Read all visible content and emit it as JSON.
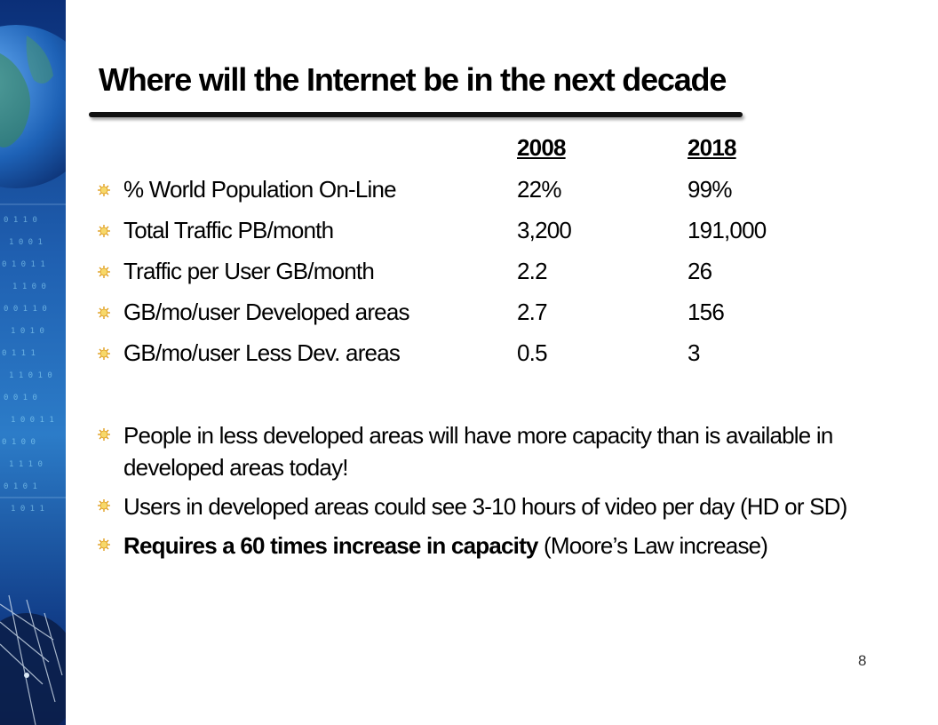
{
  "slide": {
    "title": "Where will the Internet be in the next decade",
    "page_number": "8"
  },
  "table": {
    "headers": [
      "2008",
      "2018"
    ],
    "rows": [
      {
        "label": "% World Population On-Line",
        "v2008": "22%",
        "v2018": "99%"
      },
      {
        "label": "Total Traffic PB/month",
        "v2008": "3,200",
        "v2018": "191,000"
      },
      {
        "label": "Traffic per User GB/month",
        "v2008": "2.2",
        "v2018": "26"
      },
      {
        "label": "GB/mo/user Developed areas",
        "v2008": "2.7",
        "v2018": "156"
      },
      {
        "label": "GB/mo/user Less Dev. areas",
        "v2008": "0.5",
        "v2018": "3"
      }
    ]
  },
  "notes": [
    {
      "text": "People in  less developed areas will have more capacity than is available in developed areas today!"
    },
    {
      "text": "Users in developed areas could see 3-10 hours of video per day (HD or SD)"
    },
    {
      "strong": "Requires a 60 times increase in capacity",
      "text": " (Moore’s Law increase)"
    }
  ],
  "colors": {
    "bullet": "#e0a020",
    "bullet_center": "#f7d86a",
    "art_dark": "#0a2a6a",
    "art_light": "#3d8fd6"
  },
  "icons": {
    "bullet": "sunburst-bullet-icon",
    "side_art": "earth-binary-satellite-dish-art"
  }
}
